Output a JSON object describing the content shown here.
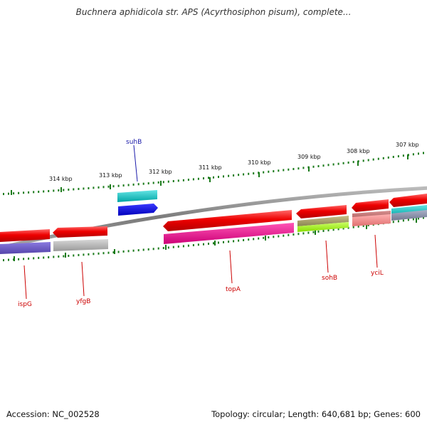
{
  "title": "Buchnera aphidicola str. APS (Acyrthosiphon pisum), complete...",
  "footer": {
    "accession": "Accession: NC_002528",
    "summary": "Topology: circular; Length: 640,681 bp; Genes: 600"
  },
  "colors": {
    "backbone": "#888888",
    "tick": "#1a7a1a",
    "label_forward": "#1a1aaa",
    "label_reverse": "#cc0000"
  },
  "scale_labels": [
    {
      "label": "314 kbp",
      "pos_kbp": 314
    },
    {
      "label": "313 kbp",
      "pos_kbp": 313
    },
    {
      "label": "312 kbp",
      "pos_kbp": 312
    },
    {
      "label": "311 kbp",
      "pos_kbp": 311
    },
    {
      "label": "310 kbp",
      "pos_kbp": 310
    },
    {
      "label": "309 kbp",
      "pos_kbp": 309
    },
    {
      "label": "308 kbp",
      "pos_kbp": 308
    },
    {
      "label": "307 kbp",
      "pos_kbp": 307
    }
  ],
  "gene_labels": [
    {
      "name": "suhB",
      "strand": "forward"
    },
    {
      "name": "ispG",
      "strand": "reverse"
    },
    {
      "name": "yfgB",
      "strand": "reverse"
    },
    {
      "name": "topA",
      "strand": "reverse"
    },
    {
      "name": "sohB",
      "strand": "reverse"
    },
    {
      "name": "yciL",
      "strand": "reverse"
    }
  ]
}
